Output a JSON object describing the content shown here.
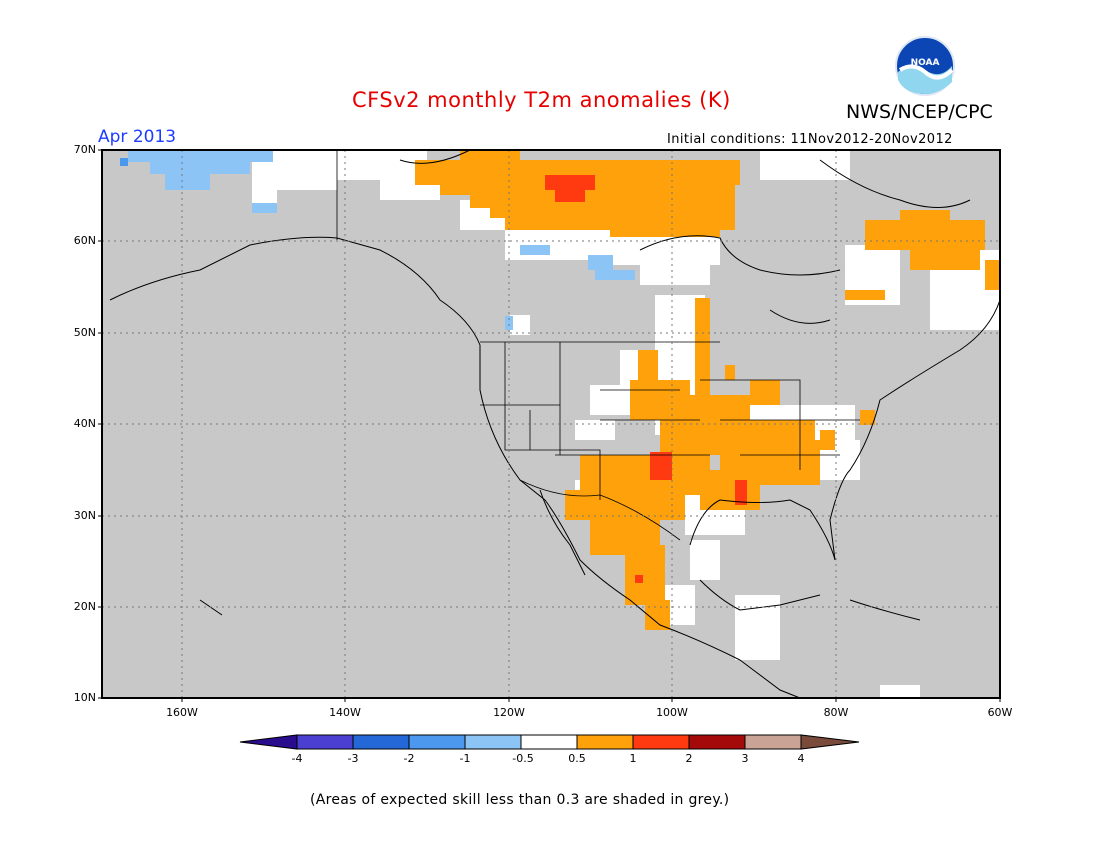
{
  "header": {
    "title": "CFSv2 monthly T2m anomalies (K)",
    "agency": "NWS/NCEP/CPC",
    "logo_text": "NOAA",
    "month": "Apr 2013",
    "initial_conditions": "Initial conditions: 11Nov2012-20Nov2012"
  },
  "map": {
    "lat_labels": [
      "70N",
      "60N",
      "50N",
      "40N",
      "30N",
      "20N",
      "10N"
    ],
    "lon_labels": [
      "160W",
      "140W",
      "120W",
      "100W",
      "80W",
      "60W"
    ],
    "extent": {
      "lon_min": -170,
      "lon_max": -60,
      "lat_min": 10,
      "lat_max": 70
    },
    "colors": {
      "skill_grey": "#c8c8c8",
      "land": "#ffffff"
    }
  },
  "colorbar": {
    "labels": [
      "-4",
      "-3",
      "-2",
      "-1",
      "-0.5",
      "0.5",
      "1",
      "2",
      "3",
      "4"
    ],
    "colors": [
      "#2a0d8e",
      "#4a3fd0",
      "#2468d8",
      "#4c98ee",
      "#8cc4f6",
      "#ffffff",
      "#ffa10a",
      "#ff3a10",
      "#a50a0a",
      "#c8a396",
      "#7a4a3a"
    ]
  },
  "footnote": "(Areas of expected skill less than 0.3 are shaded in grey.)"
}
